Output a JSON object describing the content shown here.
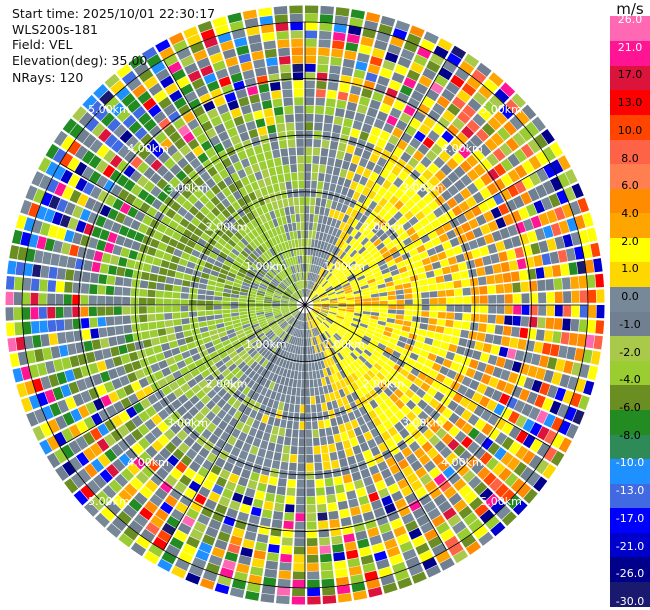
{
  "info": {
    "start_time": "Start time: 2025/10/01 22:30:17",
    "instrument": "WLS200s-181",
    "field": "Field: VEL",
    "elevation": "Elevation(deg): 35.00",
    "nrays": "NRays: 120"
  },
  "colorbar": {
    "title": "m/s",
    "colors": [
      "#191970",
      "#00008b",
      "#0000cd",
      "#0000ff",
      "#4169e1",
      "#1e90ff",
      "#2e8b57",
      "#228b22",
      "#6b8e23",
      "#9acd32",
      "#a9c94a",
      "#708090",
      "#778899",
      "#ffd700",
      "#ffff00",
      "#ffa500",
      "#ff8c00",
      "#ff7f50",
      "#ff6347",
      "#ff4500",
      "#ff0000",
      "#dc143c",
      "#ff1493",
      "#ff69b4"
    ],
    "tick_labels": [
      "26.0",
      "21.0",
      "17.0",
      "13.0",
      "10.0",
      "8.0",
      "6.0",
      "4.0",
      "2.0",
      "1.0",
      "0.0",
      "-1.0",
      "-2.0",
      "-4.0",
      "-6.0",
      "-8.0",
      "-10.0",
      "-13.0",
      "-17.0",
      "-21.0",
      "-26.0",
      "-30.0"
    ]
  },
  "chart_data": {
    "type": "ppi",
    "field": "VEL",
    "units": "m/s",
    "elevation_deg": 35.0,
    "nrays": 120,
    "range_rings_km": [
      1.0,
      2.0,
      3.0,
      4.0,
      5.0
    ],
    "max_range_km": 5.3,
    "value_range": [
      -30,
      30
    ],
    "range_labels": [
      "1.00km",
      "2.00km",
      "3.00km",
      "4.00km",
      "5.00km"
    ],
    "dominant_velocity_by_sector": [
      {
        "azimuth_deg": 0,
        "value": -1.5
      },
      {
        "azimuth_deg": 45,
        "value": 3.0
      },
      {
        "azimuth_deg": 90,
        "value": 4.0
      },
      {
        "azimuth_deg": 135,
        "value": 3.0
      },
      {
        "azimuth_deg": 180,
        "value": 0.0
      },
      {
        "azimuth_deg": 225,
        "value": -1.0
      },
      {
        "azimuth_deg": 270,
        "value": -3.5
      },
      {
        "azimuth_deg": 315,
        "value": -4.0
      }
    ]
  }
}
